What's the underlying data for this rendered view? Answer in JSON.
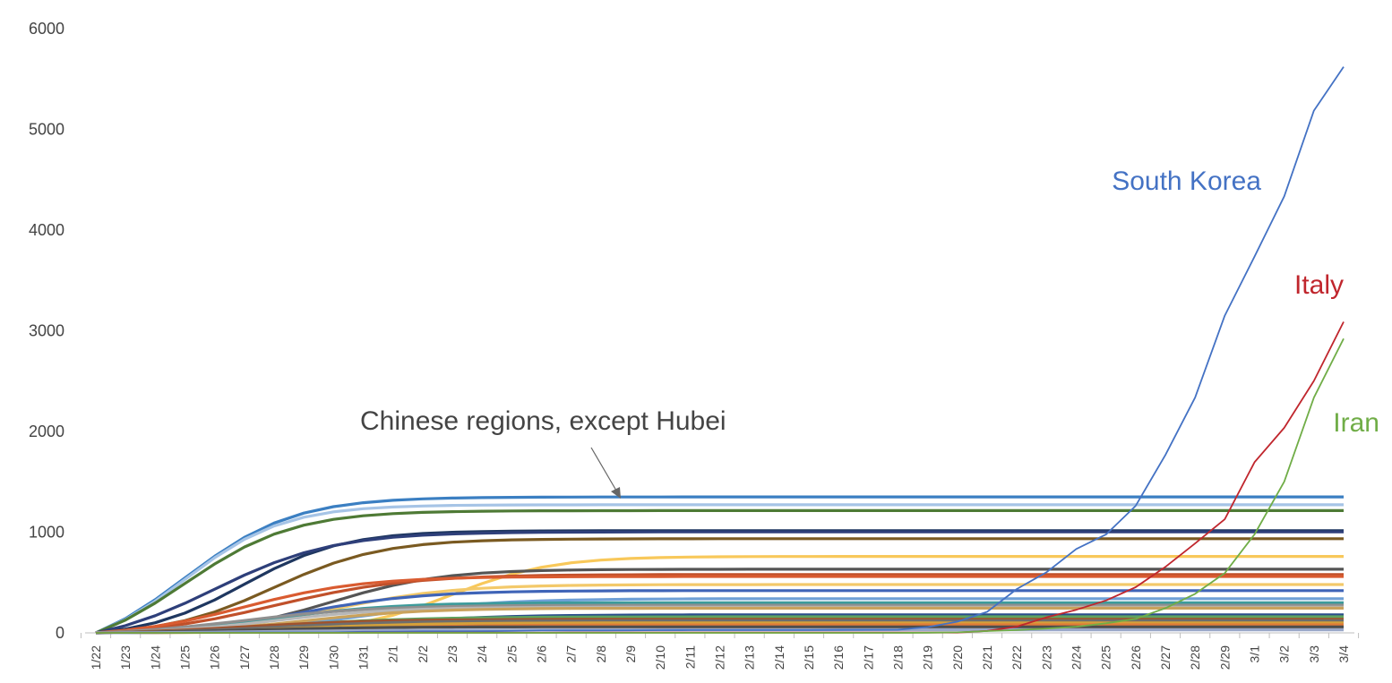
{
  "chart_data": {
    "type": "line",
    "x": [
      "1/22",
      "1/23",
      "1/24",
      "1/25",
      "1/26",
      "1/27",
      "1/28",
      "1/29",
      "1/30",
      "1/31",
      "2/1",
      "2/2",
      "2/3",
      "2/4",
      "2/5",
      "2/6",
      "2/7",
      "2/8",
      "2/9",
      "2/10",
      "2/11",
      "2/12",
      "2/13",
      "2/14",
      "2/15",
      "2/16",
      "2/17",
      "2/18",
      "2/19",
      "2/20",
      "2/21",
      "2/22",
      "2/23",
      "2/24",
      "2/25",
      "2/26",
      "2/27",
      "2/28",
      "2/29",
      "3/1",
      "3/2",
      "3/3",
      "3/4"
    ],
    "ylim": [
      0,
      6000
    ],
    "yticks": [
      "0",
      "1000",
      "2000",
      "3000",
      "4000",
      "5000",
      "6000"
    ],
    "grid": false,
    "legend": "none",
    "highlight_series": [
      {
        "name": "South Korea",
        "color": "#4472c4",
        "label_pos": "upper-right",
        "values": [
          1,
          1,
          2,
          2,
          3,
          4,
          4,
          4,
          4,
          11,
          12,
          15,
          15,
          16,
          19,
          23,
          24,
          24,
          25,
          27,
          28,
          28,
          28,
          28,
          28,
          29,
          30,
          31,
          58,
          111,
          209,
          436,
          602,
          833,
          977,
          1261,
          1766,
          2337,
          3150,
          3736,
          4335,
          5186,
          5621
        ]
      },
      {
        "name": "Italy",
        "color": "#c0262d",
        "label_pos": "right",
        "values": [
          0,
          0,
          0,
          0,
          0,
          0,
          0,
          0,
          0,
          2,
          2,
          2,
          2,
          2,
          2,
          2,
          3,
          3,
          3,
          3,
          3,
          3,
          3,
          3,
          3,
          3,
          3,
          3,
          3,
          3,
          20,
          62,
          155,
          229,
          322,
          453,
          655,
          888,
          1128,
          1694,
          2036,
          2502,
          3089
        ]
      },
      {
        "name": "Iran",
        "color": "#70ad47",
        "label_pos": "right",
        "values": [
          0,
          0,
          0,
          0,
          0,
          0,
          0,
          0,
          0,
          0,
          0,
          0,
          0,
          0,
          0,
          0,
          0,
          0,
          0,
          0,
          0,
          0,
          0,
          0,
          0,
          0,
          0,
          0,
          2,
          5,
          18,
          28,
          43,
          61,
          95,
          139,
          245,
          388,
          593,
          978,
          1501,
          2336,
          2922
        ]
      }
    ],
    "regions_label": "Chinese regions, except Hubei",
    "regions_series_plateaus": [
      1350,
      1272,
      1214,
      1015,
      1003,
      935,
      759,
      632,
      580,
      560,
      480,
      420,
      340,
      300,
      275,
      255,
      245,
      180,
      160,
      135,
      120,
      100,
      80,
      60,
      30
    ],
    "regions_series_colors": [
      "#3b7fc2",
      "#a6c4e6",
      "#4e7a35",
      "#1f3760",
      "#2e3f7a",
      "#7a5a21",
      "#f8c85a",
      "#555555",
      "#c0502a",
      "#d95b30",
      "#f3c96a",
      "#3f64b7",
      "#6fa0d6",
      "#3c9b9b",
      "#8f8f8f",
      "#b7b7b7",
      "#c9a25c",
      "#2a4e8c",
      "#5fa35f",
      "#a0522d",
      "#6e6e6e",
      "#d4a03a",
      "#e07b39",
      "#4d4d4d",
      "#9aa8c9"
    ],
    "regions_series_midpoints": [
      3,
      3,
      3,
      5,
      4,
      6,
      12,
      8,
      6,
      5,
      8,
      7,
      9,
      6,
      5,
      6,
      7,
      9,
      6,
      5,
      6,
      7,
      8,
      5,
      6
    ],
    "regions_series_slopes": [
      0.55,
      0.6,
      0.55,
      0.6,
      0.5,
      0.55,
      0.6,
      0.55,
      0.45,
      0.5,
      0.5,
      0.5,
      0.45,
      0.5,
      0.45,
      0.5,
      0.5,
      0.45,
      0.4,
      0.45,
      0.45,
      0.45,
      0.4,
      0.45,
      0.4
    ]
  }
}
